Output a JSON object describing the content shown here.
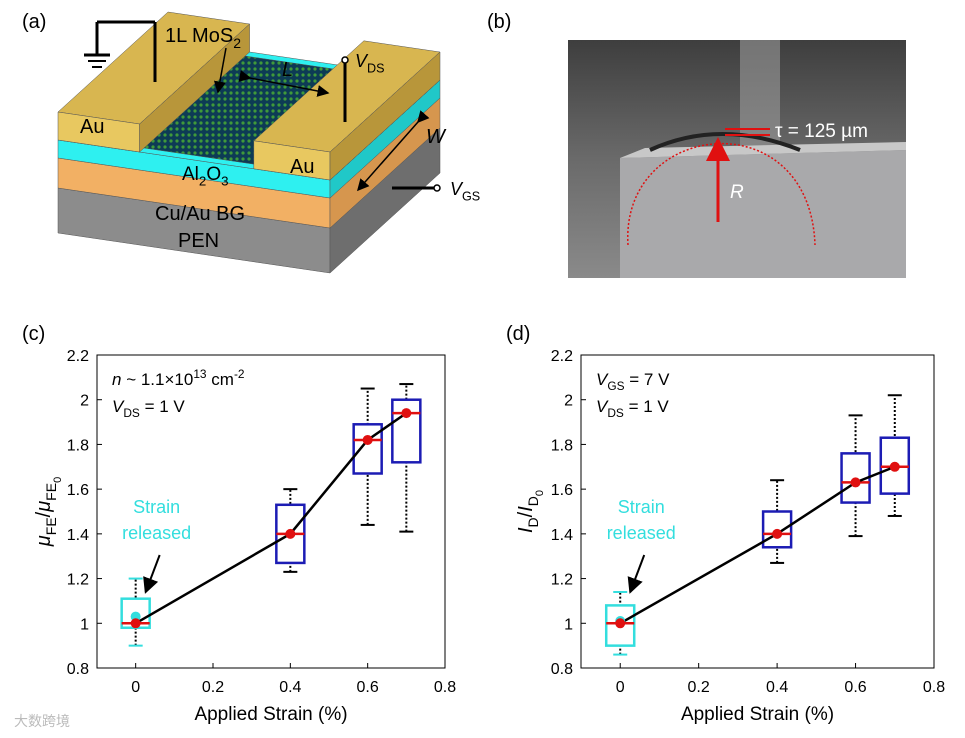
{
  "panel_labels": [
    "(a)",
    "(b)",
    "(c)",
    "(d)"
  ],
  "device_diagram": {
    "labels": [
      [
        {
          "text": "1L MoS"
        },
        {
          "text": "2",
          "script": "sub"
        }
      ],
      [
        {
          "text": "L",
          "script": "italic"
        }
      ],
      [
        {
          "text": "V",
          "script": "italic"
        },
        {
          "text": "DS",
          "script": "sub"
        }
      ],
      [
        {
          "text": "Au"
        }
      ],
      [
        {
          "text": "Au"
        }
      ],
      [
        {
          "text": "W",
          "script": "italic"
        }
      ],
      [
        {
          "text": "Al"
        },
        {
          "text": "2",
          "script": "sub"
        },
        {
          "text": "O"
        },
        {
          "text": "3",
          "script": "sub"
        }
      ],
      [
        {
          "text": "V",
          "script": "italic"
        },
        {
          "text": "GS",
          "script": "sub"
        }
      ],
      [
        {
          "text": "Cu/Au BG"
        }
      ],
      [
        {
          "text": "PEN"
        }
      ]
    ]
  },
  "photo": {
    "thickness_label": "τ = 125 µm",
    "radius_label": "R"
  },
  "watermark": "大数跨境",
  "chart_data": [
    {
      "type": "box",
      "xlabel": "Applied Strain (%)",
      "ylabel": [
        {
          "text": "μ",
          "script": "italic"
        },
        {
          "text": "FE",
          "script": "sub"
        },
        {
          "text": "/"
        },
        {
          "text": "μ",
          "script": "italic"
        },
        {
          "text": "FE",
          "script": "sub"
        },
        {
          "text": "0",
          "script": "subsub"
        }
      ],
      "xlim": [
        -0.1,
        0.8
      ],
      "xticks": [
        0,
        0.2,
        0.4,
        0.6,
        0.8
      ],
      "ylim": [
        0.8,
        2.2
      ],
      "yticks": [
        0.8,
        1,
        1.2,
        1.4,
        1.6,
        1.8,
        2,
        2.2
      ],
      "box_color": "#1c1cb4",
      "median_color": "#e01010",
      "mean_color": "#e01010",
      "line_color": "#000000",
      "released_color": "#33dede",
      "boxes": [
        {
          "x": 0.4,
          "whisker_low": 1.23,
          "q1": 1.27,
          "median": 1.4,
          "q3": 1.53,
          "whisker_high": 1.6
        },
        {
          "x": 0.6,
          "whisker_low": 1.44,
          "q1": 1.67,
          "median": 1.82,
          "q3": 1.89,
          "whisker_high": 2.05
        },
        {
          "x": 0.7,
          "whisker_low": 1.41,
          "q1": 1.72,
          "median": 1.94,
          "q3": 2.0,
          "whisker_high": 2.07
        }
      ],
      "initial": {
        "x": 0,
        "median": 1
      },
      "released": {
        "x": 0,
        "whisker_low": 0.9,
        "q1": 0.98,
        "q3": 1.11,
        "whisker_high": 1.2,
        "mean": 1.03
      },
      "means": {
        "x": [
          0,
          0.4,
          0.6,
          0.7
        ],
        "values": [
          1,
          1.4,
          1.82,
          1.94
        ]
      },
      "annotation": [
        [
          {
            "text": "n",
            "script": "italic"
          },
          {
            "text": " ~ 1.1×10"
          },
          {
            "text": "13",
            "script": "sup"
          },
          {
            "text": " cm"
          },
          {
            "text": "-2",
            "script": "sup"
          }
        ],
        [
          {
            "text": "V",
            "script": "italic"
          },
          {
            "text": "DS",
            "script": "sub"
          },
          {
            "text": " = 1 V"
          }
        ]
      ],
      "released_label": [
        "Strain",
        "released"
      ]
    },
    {
      "type": "box",
      "xlabel": "Applied Strain (%)",
      "ylabel": [
        {
          "text": "I",
          "script": "italic"
        },
        {
          "text": "D",
          "script": "sub"
        },
        {
          "text": "/"
        },
        {
          "text": "I",
          "script": "italic"
        },
        {
          "text": "D",
          "script": "sub"
        },
        {
          "text": "0",
          "script": "subsub"
        }
      ],
      "xlim": [
        -0.1,
        0.8
      ],
      "xticks": [
        0,
        0.2,
        0.4,
        0.6,
        0.8
      ],
      "ylim": [
        0.8,
        2.2
      ],
      "yticks": [
        0.8,
        1,
        1.2,
        1.4,
        1.6,
        1.8,
        2,
        2.2
      ],
      "box_color": "#1c1cb4",
      "median_color": "#e01010",
      "mean_color": "#e01010",
      "line_color": "#000000",
      "released_color": "#33dede",
      "boxes": [
        {
          "x": 0.4,
          "whisker_low": 1.27,
          "q1": 1.34,
          "median": 1.4,
          "q3": 1.5,
          "whisker_high": 1.64
        },
        {
          "x": 0.6,
          "whisker_low": 1.39,
          "q1": 1.54,
          "median": 1.63,
          "q3": 1.76,
          "whisker_high": 1.93
        },
        {
          "x": 0.7,
          "whisker_low": 1.48,
          "q1": 1.58,
          "median": 1.7,
          "q3": 1.83,
          "whisker_high": 2.02
        }
      ],
      "initial": {
        "x": 0,
        "median": 1
      },
      "released": {
        "x": 0,
        "whisker_low": 0.86,
        "q1": 0.9,
        "q3": 1.08,
        "whisker_high": 1.14,
        "mean": 1.01
      },
      "means": {
        "x": [
          0,
          0.4,
          0.6,
          0.7
        ],
        "values": [
          1,
          1.4,
          1.63,
          1.7
        ]
      },
      "annotation": [
        [
          {
            "text": "V",
            "script": "italic"
          },
          {
            "text": "GS",
            "script": "sub"
          },
          {
            "text": " = 7 V"
          }
        ],
        [
          {
            "text": "V",
            "script": "italic"
          },
          {
            "text": "DS",
            "script": "sub"
          },
          {
            "text": " = 1 V"
          }
        ]
      ],
      "released_label": [
        "Strain",
        "released"
      ]
    }
  ]
}
